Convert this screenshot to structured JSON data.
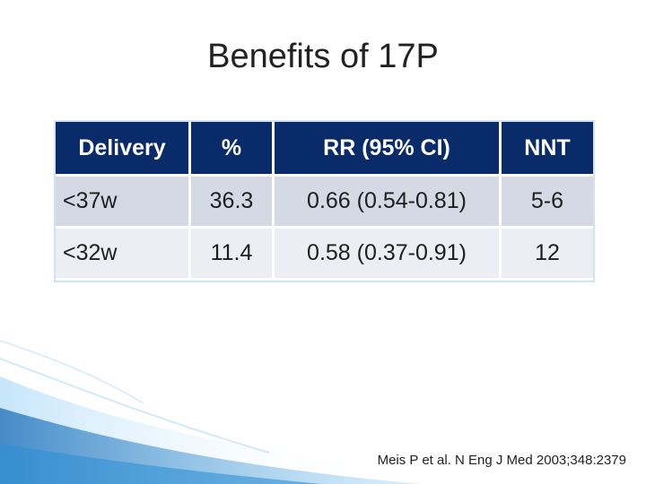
{
  "slide": {
    "title": "Benefits of 17P",
    "table": {
      "headers": [
        "Delivery",
        "%",
        "RR (95% CI)",
        "NNT"
      ],
      "rows": [
        [
          "<37w",
          "36.3",
          "0.66 (0.54-0.81)",
          "5-6"
        ],
        [
          "<32w",
          "11.4",
          "0.58 (0.37-0.91)",
          "12"
        ]
      ]
    },
    "citation": "Meis P et al. N Eng J Med 2003;348:2379"
  },
  "colors": {
    "header_bg": "#0a2b6a",
    "row_bg_1": "#d5d9e3",
    "row_bg_2": "#eceef3",
    "accent_swoosh": "#2e8fd3"
  }
}
